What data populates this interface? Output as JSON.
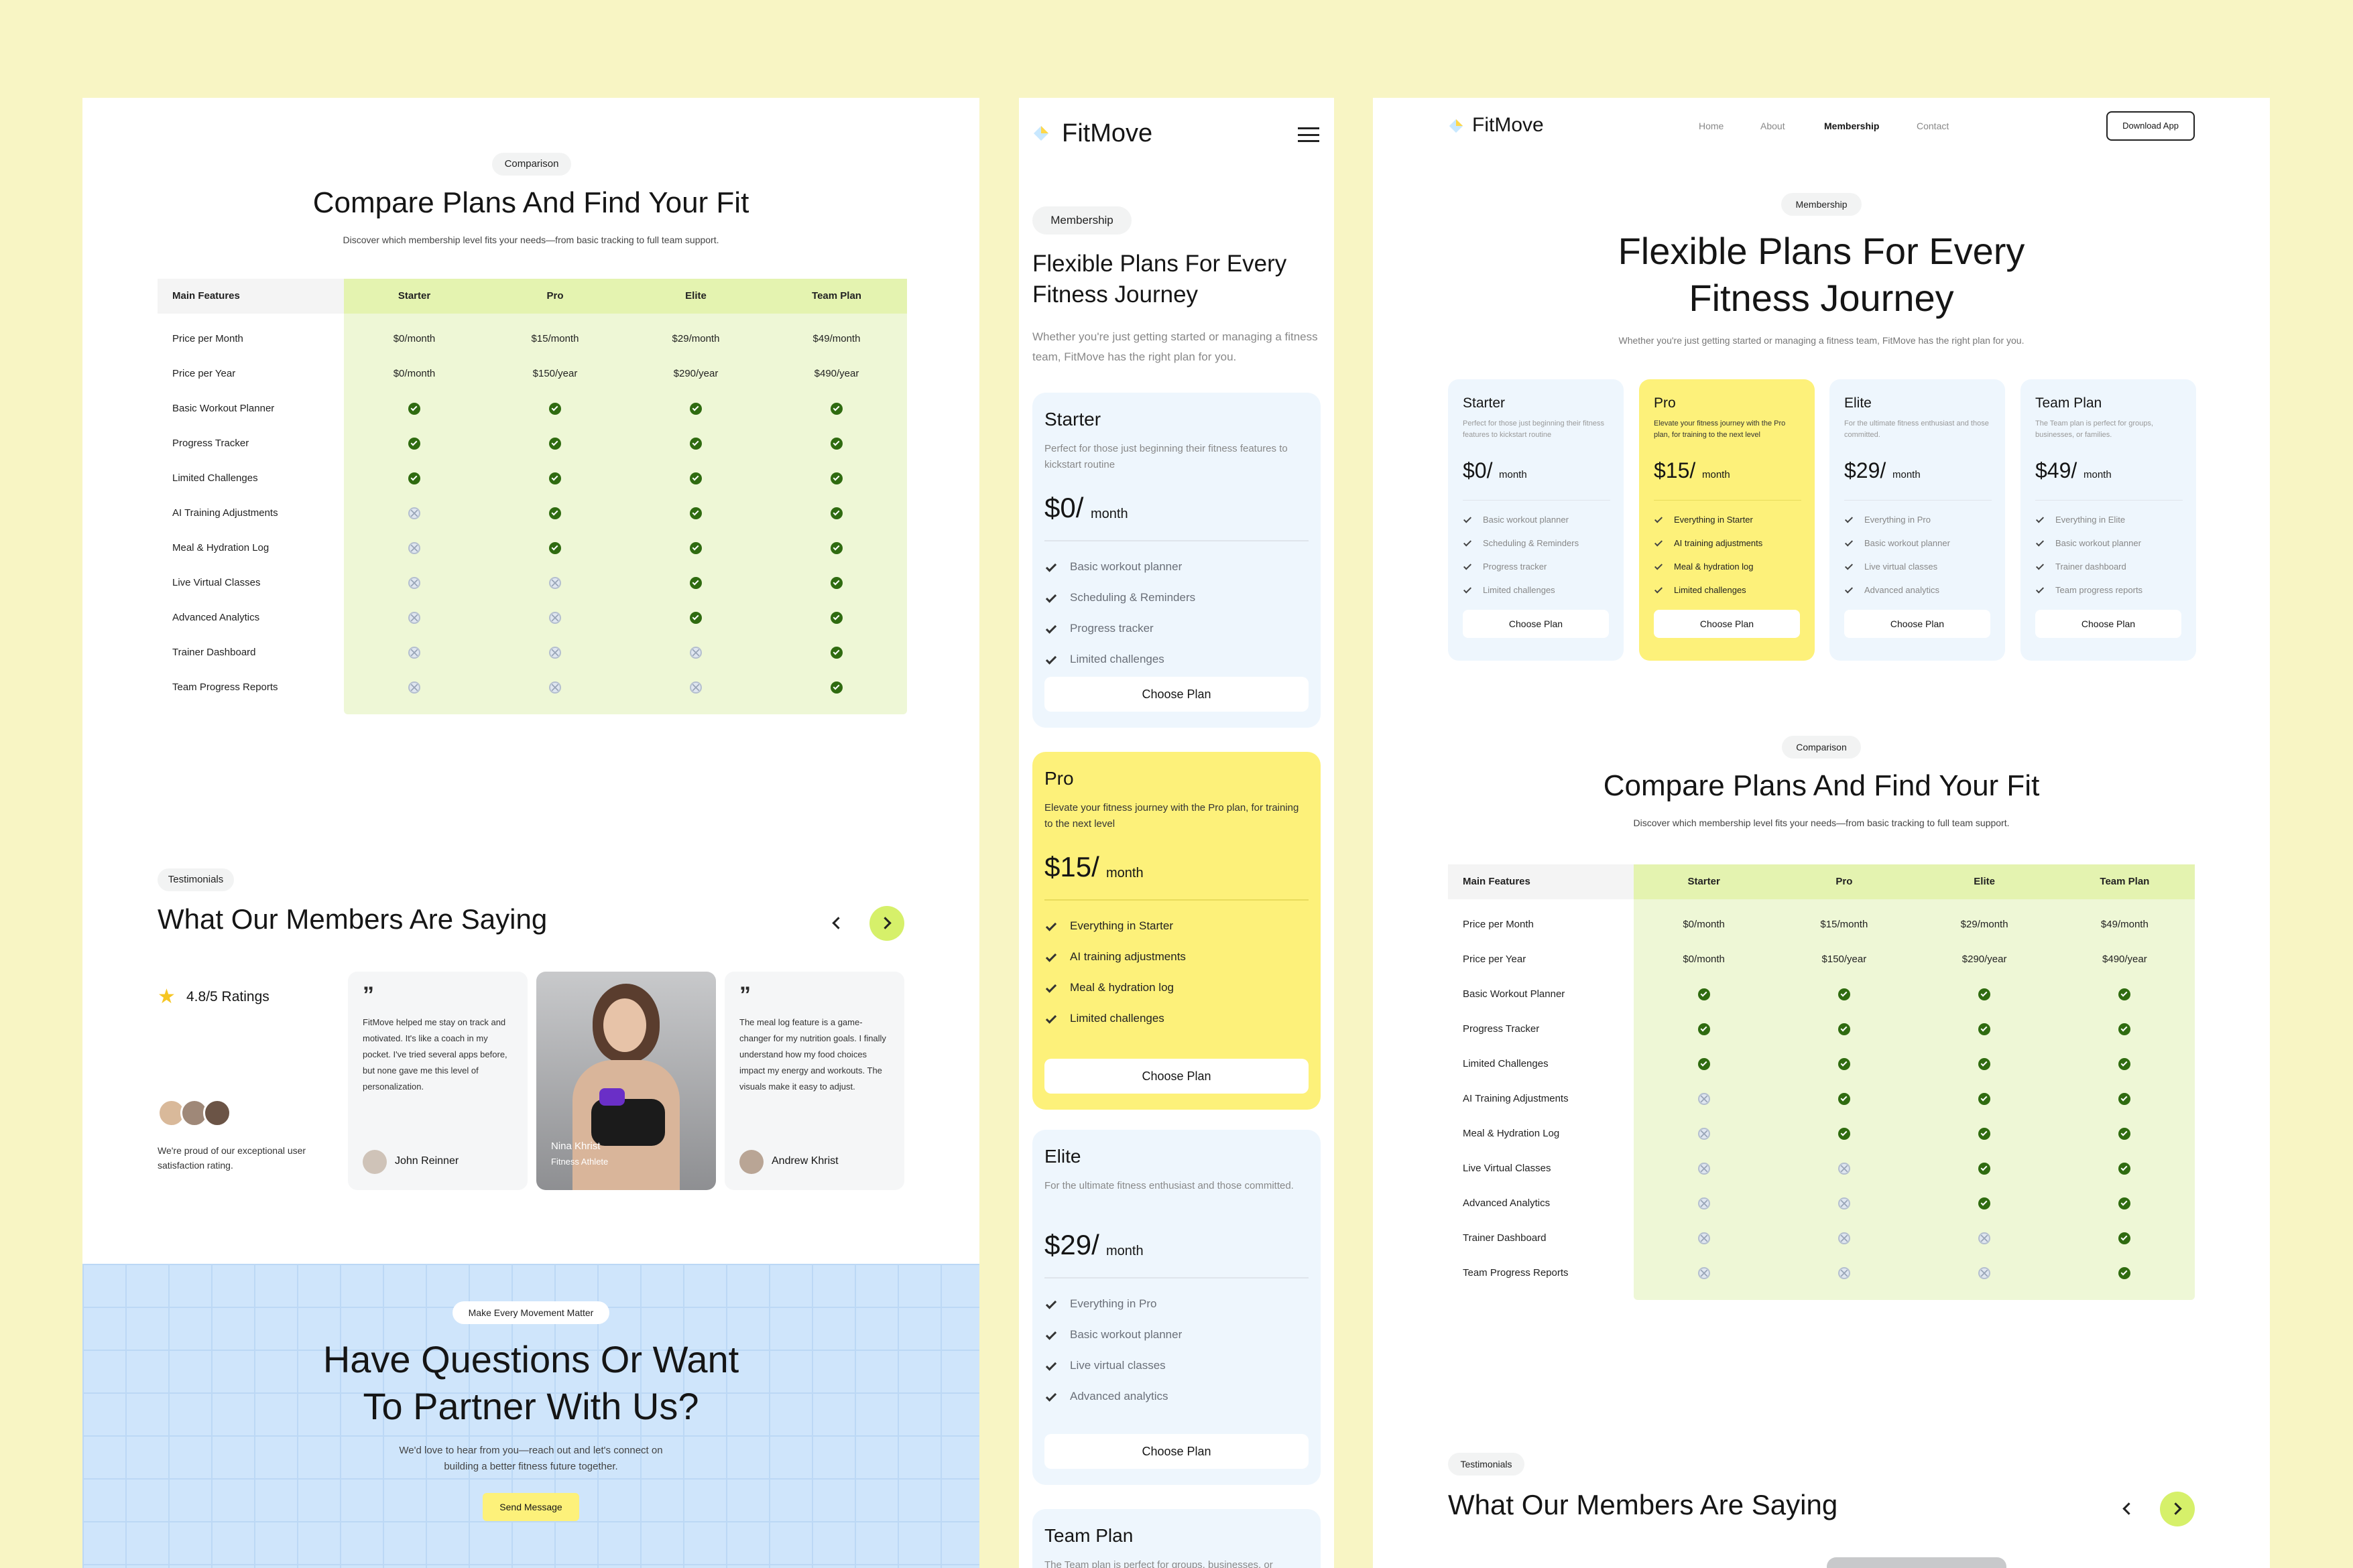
{
  "colors": {
    "background": "#f8f5c4",
    "accent": "#fdf17a",
    "highlight": "#eef7d6",
    "check": "#2f6b10",
    "cta_blue": "#cfe5fb"
  },
  "left": {
    "comparison": {
      "chip": "Comparison",
      "title": "Compare Plans And Find Your Fit",
      "subtitle": "Discover which membership level fits your needs—from basic tracking to full team support.",
      "columns": [
        "Main Features",
        "Starter",
        "Pro",
        "Elite",
        "Team Plan"
      ],
      "price_rows": [
        {
          "feature": "Price per Month",
          "values": [
            "$0/month",
            "$15/month",
            "$29/month",
            "$49/month"
          ]
        },
        {
          "feature": "Price per Year",
          "values": [
            "$0/month",
            "$150/year",
            "$290/year",
            "$490/year"
          ]
        }
      ],
      "feature_rows": [
        {
          "feature": "Basic Workout Planner",
          "values": [
            true,
            true,
            true,
            true
          ]
        },
        {
          "feature": "Progress Tracker",
          "values": [
            true,
            true,
            true,
            true
          ]
        },
        {
          "feature": "Limited Challenges",
          "values": [
            true,
            true,
            true,
            true
          ]
        },
        {
          "feature": "AI Training Adjustments",
          "values": [
            false,
            true,
            true,
            true
          ]
        },
        {
          "feature": "Meal & Hydration Log",
          "values": [
            false,
            true,
            true,
            true
          ]
        },
        {
          "feature": "Live Virtual Classes",
          "values": [
            false,
            false,
            true,
            true
          ]
        },
        {
          "feature": "Advanced Analytics",
          "values": [
            false,
            false,
            true,
            true
          ]
        },
        {
          "feature": "Trainer Dashboard",
          "values": [
            false,
            false,
            false,
            true
          ]
        },
        {
          "feature": "Team Progress Reports",
          "values": [
            false,
            false,
            false,
            true
          ]
        }
      ]
    },
    "testimonials": {
      "chip": "Testimonials",
      "title": "What Our Members Are Saying",
      "rating": "4.8/5 Ratings",
      "rating_note": "We're proud of our exceptional user satisfaction rating.",
      "quote1": "FitMove helped me stay on track and motivated. It's like a coach in my pocket. I've tried several apps before, but none gave me this level of personalization.",
      "author1": "John Reinner",
      "photo_name": "Nina Khrist",
      "photo_role": "Fitness Athlete",
      "quote2": "The meal log feature is a game-changer for my nutrition goals. I finally understand how my food choices impact my energy and workouts. The visuals make it easy to adjust.",
      "author2": "Andrew Khrist"
    },
    "cta": {
      "chip": "Make Every Movement Matter",
      "title_line1": "Have Questions Or Want",
      "title_line2": "To Partner With Us?",
      "text_line1": "We'd love to hear from you—reach out and let's connect on",
      "text_line2": "building a better fitness future together.",
      "button": "Send Message"
    }
  },
  "mobile": {
    "brand": "FitMove",
    "chip": "Membership",
    "title_line1": "Flexible Plans For Every",
    "title_line2": "Fitness Journey",
    "subtitle": "Whether you're just getting started or managing a fitness team, FitMove has the right plan for you.",
    "plans": [
      {
        "name": "Starter",
        "desc": "Perfect for those just beginning their fitness features to kickstart routine",
        "price": "$0/",
        "per": "month",
        "features": [
          "Basic workout planner",
          "Scheduling & Reminders",
          "Progress tracker",
          "Limited challenges"
        ],
        "button": "Choose Plan"
      },
      {
        "name": "Pro",
        "desc": "Elevate your fitness journey with the Pro plan, for training to the next level",
        "price": "$15/",
        "per": "month",
        "features": [
          "Everything in Starter",
          "AI training adjustments",
          "Meal & hydration log",
          "Limited challenges"
        ],
        "button": "Choose Plan"
      },
      {
        "name": "Elite",
        "desc": "For the ultimate fitness enthusiast and those committed.",
        "price": "$29/",
        "per": "month",
        "features": [
          "Everything in Pro",
          "Basic workout planner",
          "Live virtual classes",
          "Advanced analytics"
        ],
        "button": "Choose Plan"
      },
      {
        "name": "Team Plan",
        "desc": "The Team plan is perfect for groups, businesses, or"
      }
    ]
  },
  "desktop": {
    "brand": "FitMove",
    "nav": [
      "Home",
      "About",
      "Membership",
      "Contact"
    ],
    "download": "Download App",
    "chip": "Membership",
    "title_line1": "Flexible Plans For Every",
    "title_line2": "Fitness Journey",
    "subtitle": "Whether you're just getting started or managing a fitness team, FitMove has the right plan for you.",
    "plans": [
      {
        "name": "Starter",
        "desc": "Perfect for those just beginning their fitness features to kickstart routine",
        "price": "$0/",
        "per": "month",
        "features": [
          "Basic workout planner",
          "Scheduling & Reminders",
          "Progress tracker",
          "Limited challenges"
        ],
        "button": "Choose Plan"
      },
      {
        "name": "Pro",
        "desc": "Elevate your fitness journey with the Pro plan, for training to the next level",
        "price": "$15/",
        "per": "month",
        "features": [
          "Everything in Starter",
          "AI training adjustments",
          "Meal & hydration log",
          "Limited challenges"
        ],
        "button": "Choose Plan"
      },
      {
        "name": "Elite",
        "desc": "For the ultimate fitness enthusiast and those committed.",
        "price": "$29/",
        "per": "month",
        "features": [
          "Everything in Pro",
          "Basic workout planner",
          "Live virtual classes",
          "Advanced analytics"
        ],
        "button": "Choose Plan"
      },
      {
        "name": "Team Plan",
        "desc": "The Team plan is perfect for groups, businesses, or families.",
        "price": "$49/",
        "per": "month",
        "features": [
          "Everything in Elite",
          "Basic workout planner",
          "Trainer dashboard",
          "Team progress reports"
        ],
        "button": "Choose Plan"
      }
    ],
    "comparison_chip": "Comparison",
    "comparison_title": "Compare Plans And Find Your Fit",
    "comparison_subtitle": "Discover which membership level fits your needs—from basic tracking to full team support.",
    "testimonials_chip": "Testimonials",
    "testimonials_title": "What Our Members Are Saying"
  }
}
